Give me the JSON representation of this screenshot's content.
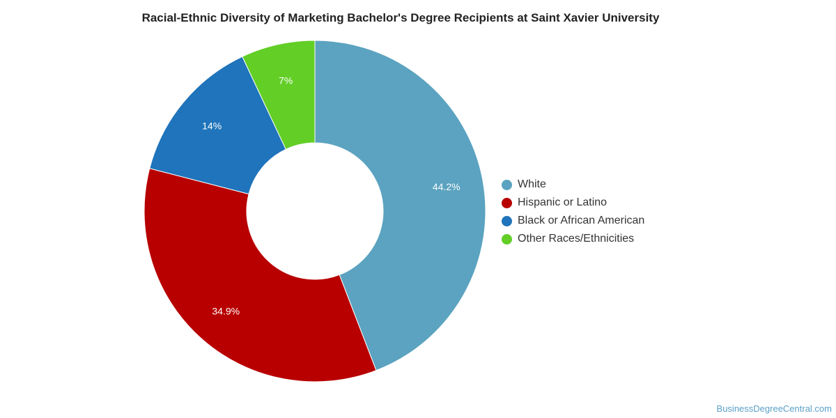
{
  "chart_data": {
    "type": "pie",
    "title": "Racial-Ethnic Diversity of Marketing Bachelor's Degree Recipients at Saint Xavier University",
    "donut": true,
    "legend_position": "right",
    "slices": [
      {
        "label": "White",
        "value": 44.2,
        "value_label": "44.2%",
        "color": "#5ba3c0"
      },
      {
        "label": "Hispanic or Latino",
        "value": 34.9,
        "value_label": "34.9%",
        "color": "#b80000"
      },
      {
        "label": "Black or African American",
        "value": 14.0,
        "value_label": "14%",
        "color": "#1f74bb"
      },
      {
        "label": "Other Races/Ethnicities",
        "value": 7.0,
        "value_label": "7%",
        "color": "#62ce26"
      }
    ]
  },
  "source": "BusinessDegreeCentral.com"
}
